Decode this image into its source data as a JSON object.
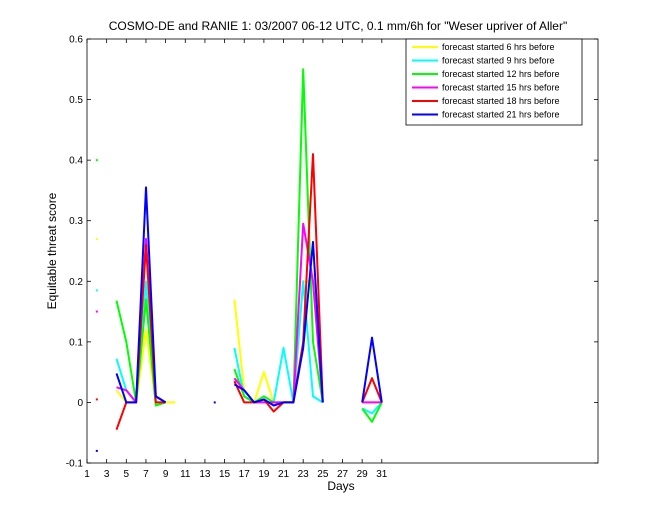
{
  "chart_data": {
    "type": "line",
    "title": "COSMO-DE and RANIE 1: 03/2007 06-12 UTC, 0.1 mm/6h for \"Weser upriver of Aller\"",
    "xlabel": "Days",
    "ylabel": "Equitable threat score",
    "xlim": [
      1,
      53
    ],
    "ylim": [
      -0.1,
      0.6
    ],
    "x_ticks": [
      1,
      3,
      5,
      7,
      9,
      11,
      13,
      15,
      17,
      19,
      21,
      23,
      25,
      27,
      29,
      31
    ],
    "y_ticks": [
      -0.1,
      0,
      0.1,
      0.2,
      0.3,
      0.4,
      0.5,
      0.6
    ],
    "y_tick_labels": [
      "-0.1",
      "0",
      "0.1",
      "0.2",
      "0.3",
      "0.4",
      "0.5",
      "0.6"
    ],
    "grid": false,
    "legend_position": "top-right",
    "series": [
      {
        "name": "forecast started 6 hrs before",
        "color": "#ffff00",
        "values": [
          null,
          0.27,
          null,
          0.02,
          0.0,
          0.0,
          0.12,
          0.0,
          0.0,
          0.0,
          null,
          null,
          null,
          null,
          null,
          0.17,
          0.02,
          0.0,
          0.05,
          0.0,
          0.0,
          0.0,
          0.2,
          0.2,
          0.0,
          null,
          null,
          null,
          0.0,
          0.0,
          0.0
        ]
      },
      {
        "name": "forecast started 9 hrs before",
        "color": "#00ffff",
        "values": [
          null,
          0.185,
          null,
          0.072,
          0.02,
          0.0,
          0.2,
          0.0,
          0.0,
          null,
          null,
          null,
          null,
          null,
          null,
          0.09,
          0.01,
          0.0,
          0.0,
          0.0,
          0.09,
          0.0,
          0.2,
          0.01,
          0.0,
          null,
          null,
          null,
          -0.01,
          -0.018,
          0.0
        ]
      },
      {
        "name": "forecast started 12 hrs before",
        "color": "#00ff00",
        "values": [
          null,
          0.4,
          null,
          0.168,
          0.1,
          0.0,
          0.17,
          -0.005,
          0.0,
          null,
          null,
          null,
          null,
          null,
          null,
          0.055,
          0.01,
          0.0,
          0.01,
          0.0,
          0.0,
          0.0,
          0.55,
          0.1,
          0.0,
          null,
          null,
          null,
          -0.01,
          -0.032,
          0.0
        ]
      },
      {
        "name": "forecast started 15 hrs before",
        "color": "#ff00ff",
        "values": [
          null,
          0.15,
          null,
          0.025,
          0.02,
          0.0,
          0.27,
          0.01,
          0.0,
          null,
          null,
          null,
          null,
          null,
          null,
          0.04,
          0.02,
          0.0,
          0.0,
          0.0,
          0.0,
          0.0,
          0.295,
          0.2,
          0.0,
          null,
          null,
          null,
          0.0,
          0.0,
          0.0
        ]
      },
      {
        "name": "forecast started 18 hrs before",
        "color": "#ff0000",
        "values": [
          null,
          0.005,
          null,
          -0.045,
          0.0,
          0.0,
          0.26,
          0.0,
          0.0,
          null,
          null,
          null,
          null,
          null,
          null,
          0.035,
          0.0,
          0.0,
          0.005,
          -0.015,
          0.0,
          0.0,
          0.1,
          0.41,
          0.0,
          null,
          null,
          null,
          0.0,
          0.04,
          0.0
        ]
      },
      {
        "name": "forecast started 21 hrs before",
        "color": "#0000ff",
        "values": [
          null,
          -0.08,
          null,
          0.048,
          0.0,
          0.0,
          0.355,
          0.01,
          0.0,
          null,
          null,
          null,
          null,
          0.0,
          null,
          0.03,
          0.02,
          0.0,
          0.005,
          -0.005,
          0.0,
          0.0,
          0.09,
          0.265,
          0.0,
          null,
          null,
          null,
          0.0,
          0.107,
          0.0
        ]
      }
    ]
  }
}
